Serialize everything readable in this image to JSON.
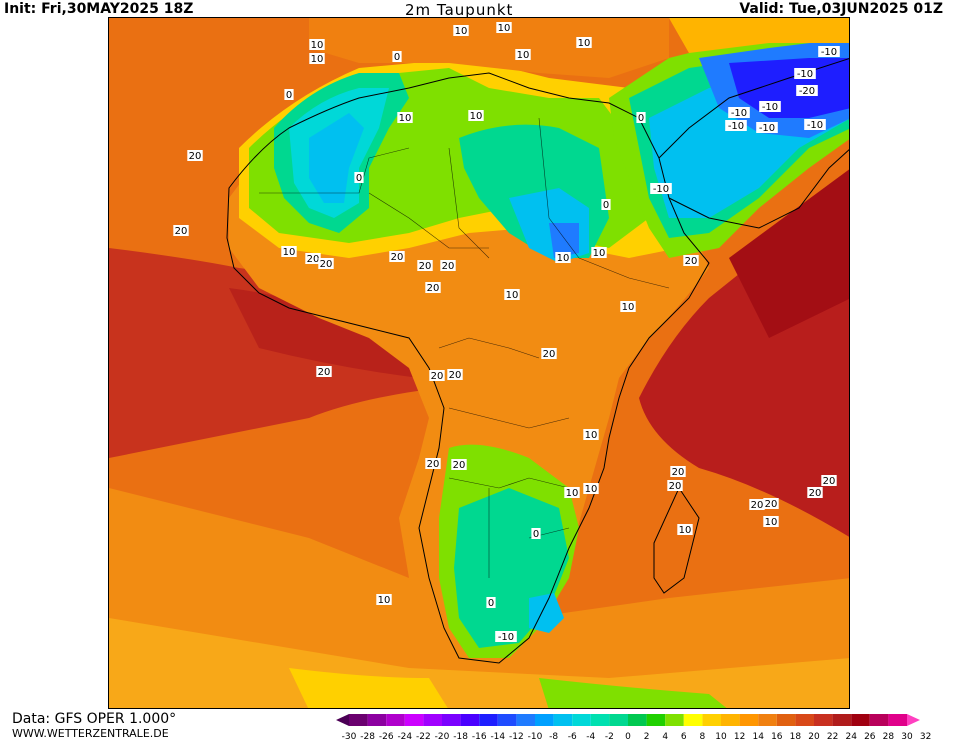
{
  "header": {
    "init": "Init: Fri,30MAY2025 18Z",
    "title": "2m Taupunkt",
    "valid": "Valid: Tue,03JUN2025 01Z"
  },
  "footer": {
    "source": "Data: GFS OPER 1.000°",
    "site": "WWW.WETTERZENTRALE.DE"
  },
  "legend": {
    "values": [
      "-30",
      "-28",
      "-26",
      "-24",
      "-22",
      "-20",
      "-18",
      "-16",
      "-14",
      "-12",
      "-10",
      "-8",
      "-6",
      "-4",
      "-2",
      "0",
      "2",
      "4",
      "6",
      "8",
      "10",
      "12",
      "14",
      "16",
      "18",
      "20",
      "22",
      "24",
      "26",
      "28",
      "30",
      "32"
    ],
    "colors": [
      "#4b0055",
      "#6a006f",
      "#8c00a0",
      "#b000cc",
      "#cc00ff",
      "#a000ff",
      "#7a00ff",
      "#4a00ff",
      "#1e1eff",
      "#1f4cff",
      "#1f7bff",
      "#00a0ff",
      "#00c0f0",
      "#00d8d8",
      "#00e0b0",
      "#00d890",
      "#00c850",
      "#20d000",
      "#7fe000",
      "#ffff00",
      "#ffd000",
      "#ffb400",
      "#ff9600",
      "#f08010",
      "#e06010",
      "#d84818",
      "#c83020",
      "#b01c1c",
      "#a00010",
      "#b8005a",
      "#e0008a",
      "#ff40c0"
    ]
  },
  "contour_labels": [
    {
      "text": "10"
    },
    {
      "text": "10"
    },
    {
      "text": "10"
    },
    {
      "text": "10"
    },
    {
      "text": "10"
    },
    {
      "text": "10"
    },
    {
      "text": "0"
    },
    {
      "text": "0"
    },
    {
      "text": "10"
    },
    {
      "text": "10"
    },
    {
      "text": "0"
    },
    {
      "text": "20"
    },
    {
      "text": "20"
    },
    {
      "text": "10"
    },
    {
      "text": "20"
    },
    {
      "text": "20"
    },
    {
      "text": "20"
    },
    {
      "text": "20"
    },
    {
      "text": "20"
    },
    {
      "text": "20"
    },
    {
      "text": "20"
    },
    {
      "text": "20"
    },
    {
      "text": "20"
    },
    {
      "text": "20"
    },
    {
      "text": "-10"
    },
    {
      "text": "-10"
    },
    {
      "text": "-20"
    },
    {
      "text": "-10"
    },
    {
      "text": "-10"
    },
    {
      "text": "-10"
    },
    {
      "text": "-10"
    },
    {
      "text": "-10"
    },
    {
      "text": "-10"
    },
    {
      "text": "0"
    },
    {
      "text": "0"
    },
    {
      "text": "10"
    },
    {
      "text": "10"
    },
    {
      "text": "10"
    },
    {
      "text": "20"
    },
    {
      "text": "20"
    },
    {
      "text": "20"
    },
    {
      "text": "20"
    },
    {
      "text": "20"
    },
    {
      "text": "20"
    },
    {
      "text": "20"
    },
    {
      "text": "10"
    },
    {
      "text": "10"
    },
    {
      "text": "10"
    },
    {
      "text": "10"
    },
    {
      "text": "10"
    },
    {
      "text": "10"
    },
    {
      "text": "-10"
    },
    {
      "text": "0"
    },
    {
      "text": "0"
    },
    {
      "text": "10"
    },
    {
      "text": "20"
    },
    {
      "text": "20"
    }
  ]
}
